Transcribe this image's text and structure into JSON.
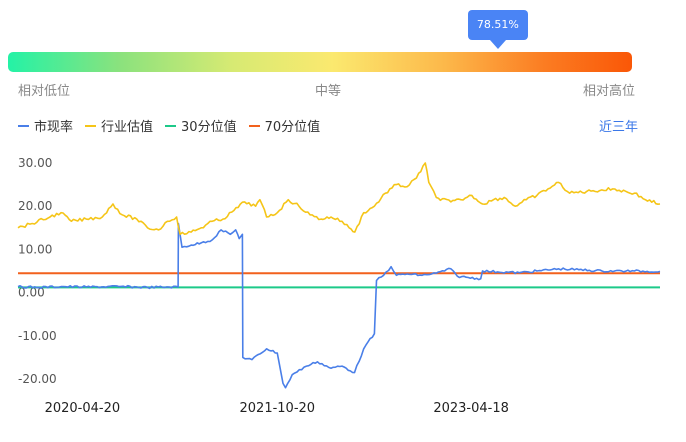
{
  "percentile": {
    "value_label": "78.51%",
    "value": 78.51,
    "scale": {
      "low": "相对低位",
      "mid": "中等",
      "high": "相对高位"
    }
  },
  "period_label": "近三年",
  "chart_data": {
    "type": "line",
    "legend_position": "top-left",
    "grid": false,
    "ylim": [
      -23,
      33
    ],
    "yticks": [
      30,
      20,
      10,
      0,
      -10,
      -20
    ],
    "ytick_labels": [
      "30.00",
      "20.00",
      "10.00",
      "0.00",
      "-10.00",
      "-20.00"
    ],
    "x_range": [
      "2019-10-22",
      "2024-09-30"
    ],
    "xticks": [
      "2020-04-20",
      "2021-10-20",
      "2023-04-18"
    ],
    "series": [
      {
        "name": "市现率",
        "color": "#4a7fe8",
        "points": [
          [
            "2019-10-22",
            1.4
          ],
          [
            "2019-12-20",
            1.2
          ],
          [
            "2020-02-20",
            1.4
          ],
          [
            "2020-05-01",
            1.3
          ],
          [
            "2020-08-01",
            1.4
          ],
          [
            "2020-10-20",
            1.2
          ],
          [
            "2020-12-20",
            1.3
          ],
          [
            "2021-01-14",
            1.3
          ],
          [
            "2021-01-15",
            16.0
          ],
          [
            "2021-01-25",
            10.5
          ],
          [
            "2021-02-20",
            11.0
          ],
          [
            "2021-03-20",
            11.5
          ],
          [
            "2021-04-20",
            12.2
          ],
          [
            "2021-05-15",
            14.5
          ],
          [
            "2021-06-10",
            13.5
          ],
          [
            "2021-06-25",
            14.5
          ],
          [
            "2021-07-05",
            12.5
          ],
          [
            "2021-07-14",
            13.5
          ],
          [
            "2021-07-15",
            -15.0
          ],
          [
            "2021-08-10",
            -15.5
          ],
          [
            "2021-09-20",
            -13.0
          ],
          [
            "2021-10-20",
            -14.0
          ],
          [
            "2021-11-05",
            -21.0
          ],
          [
            "2021-11-12",
            -22.0
          ],
          [
            "2021-12-01",
            -19.0
          ],
          [
            "2022-01-10",
            -17.0
          ],
          [
            "2022-02-10",
            -16.0
          ],
          [
            "2022-03-20",
            -17.5
          ],
          [
            "2022-04-20",
            -17.0
          ],
          [
            "2022-05-25",
            -18.5
          ],
          [
            "2022-06-20",
            -13.0
          ],
          [
            "2022-07-20",
            -9.5
          ],
          [
            "2022-07-26",
            2.8
          ],
          [
            "2022-08-15",
            4.0
          ],
          [
            "2022-09-05",
            6.0
          ],
          [
            "2022-09-20",
            4.0
          ],
          [
            "2022-10-20",
            4.3
          ],
          [
            "2022-12-01",
            4.0
          ],
          [
            "2023-01-10",
            4.5
          ],
          [
            "2023-02-20",
            5.5
          ],
          [
            "2023-03-10",
            3.8
          ],
          [
            "2023-04-10",
            3.5
          ],
          [
            "2023-05-15",
            3.2
          ],
          [
            "2023-05-20",
            5.0
          ],
          [
            "2023-07-01",
            4.8
          ],
          [
            "2023-09-01",
            4.6
          ],
          [
            "2023-10-20",
            5.0
          ],
          [
            "2023-12-20",
            5.5
          ],
          [
            "2024-02-15",
            5.3
          ],
          [
            "2024-04-20",
            5.0
          ],
          [
            "2024-07-20",
            5.0
          ],
          [
            "2024-09-30",
            4.9
          ]
        ]
      },
      {
        "name": "行业估值",
        "color": "#f5c518",
        "points": [
          [
            "2019-10-22",
            15.0
          ],
          [
            "2019-12-01",
            16.0
          ],
          [
            "2020-01-20",
            17.5
          ],
          [
            "2020-02-20",
            18.5
          ],
          [
            "2020-03-20",
            16.5
          ],
          [
            "2020-05-01",
            17.0
          ],
          [
            "2020-06-15",
            17.5
          ],
          [
            "2020-07-15",
            20.5
          ],
          [
            "2020-08-10",
            18.0
          ],
          [
            "2020-09-20",
            17.0
          ],
          [
            "2020-10-20",
            15.0
          ],
          [
            "2020-11-20",
            14.5
          ],
          [
            "2020-12-15",
            16.5
          ],
          [
            "2021-01-10",
            17.5
          ],
          [
            "2021-01-20",
            13.5
          ],
          [
            "2021-02-20",
            14.0
          ],
          [
            "2021-03-20",
            15.0
          ],
          [
            "2021-04-20",
            16.5
          ],
          [
            "2021-05-20",
            17.0
          ],
          [
            "2021-06-20",
            19.0
          ],
          [
            "2021-07-20",
            21.0
          ],
          [
            "2021-08-20",
            20.0
          ],
          [
            "2021-09-01",
            21.5
          ],
          [
            "2021-09-20",
            17.5
          ],
          [
            "2021-10-20",
            18.5
          ],
          [
            "2021-11-20",
            21.5
          ],
          [
            "2021-12-20",
            20.0
          ],
          [
            "2022-01-20",
            18.0
          ],
          [
            "2022-02-20",
            17.0
          ],
          [
            "2022-03-20",
            17.5
          ],
          [
            "2022-04-20",
            16.5
          ],
          [
            "2022-05-10",
            15.0
          ],
          [
            "2022-05-26",
            14.0
          ],
          [
            "2022-06-20",
            18.5
          ],
          [
            "2022-07-20",
            20.0
          ],
          [
            "2022-08-20",
            23.0
          ],
          [
            "2022-09-20",
            25.0
          ],
          [
            "2022-10-20",
            24.5
          ],
          [
            "2022-11-15",
            26.5
          ],
          [
            "2022-12-10",
            30.0
          ],
          [
            "2022-12-20",
            25.5
          ],
          [
            "2023-01-10",
            22.0
          ],
          [
            "2023-02-20",
            21.0
          ],
          [
            "2023-03-20",
            21.5
          ],
          [
            "2023-04-20",
            22.5
          ],
          [
            "2023-05-20",
            20.5
          ],
          [
            "2023-06-20",
            21.5
          ],
          [
            "2023-07-20",
            22.0
          ],
          [
            "2023-08-20",
            20.0
          ],
          [
            "2023-09-20",
            21.5
          ],
          [
            "2023-10-20",
            22.5
          ],
          [
            "2023-11-20",
            24.0
          ],
          [
            "2023-12-20",
            25.5
          ],
          [
            "2024-01-20",
            23.0
          ],
          [
            "2024-03-20",
            23.5
          ],
          [
            "2024-05-20",
            24.0
          ],
          [
            "2024-07-20",
            23.0
          ],
          [
            "2024-08-20",
            21.5
          ],
          [
            "2024-09-30",
            20.5
          ]
        ]
      },
      {
        "name": "30分位值",
        "color": "#1dc989",
        "points": [
          [
            "2019-10-22",
            1.2
          ],
          [
            "2024-09-30",
            1.2
          ]
        ]
      },
      {
        "name": "70分位值",
        "color": "#f2611d",
        "points": [
          [
            "2019-10-22",
            4.5
          ],
          [
            "2024-09-30",
            4.5
          ]
        ]
      }
    ]
  }
}
